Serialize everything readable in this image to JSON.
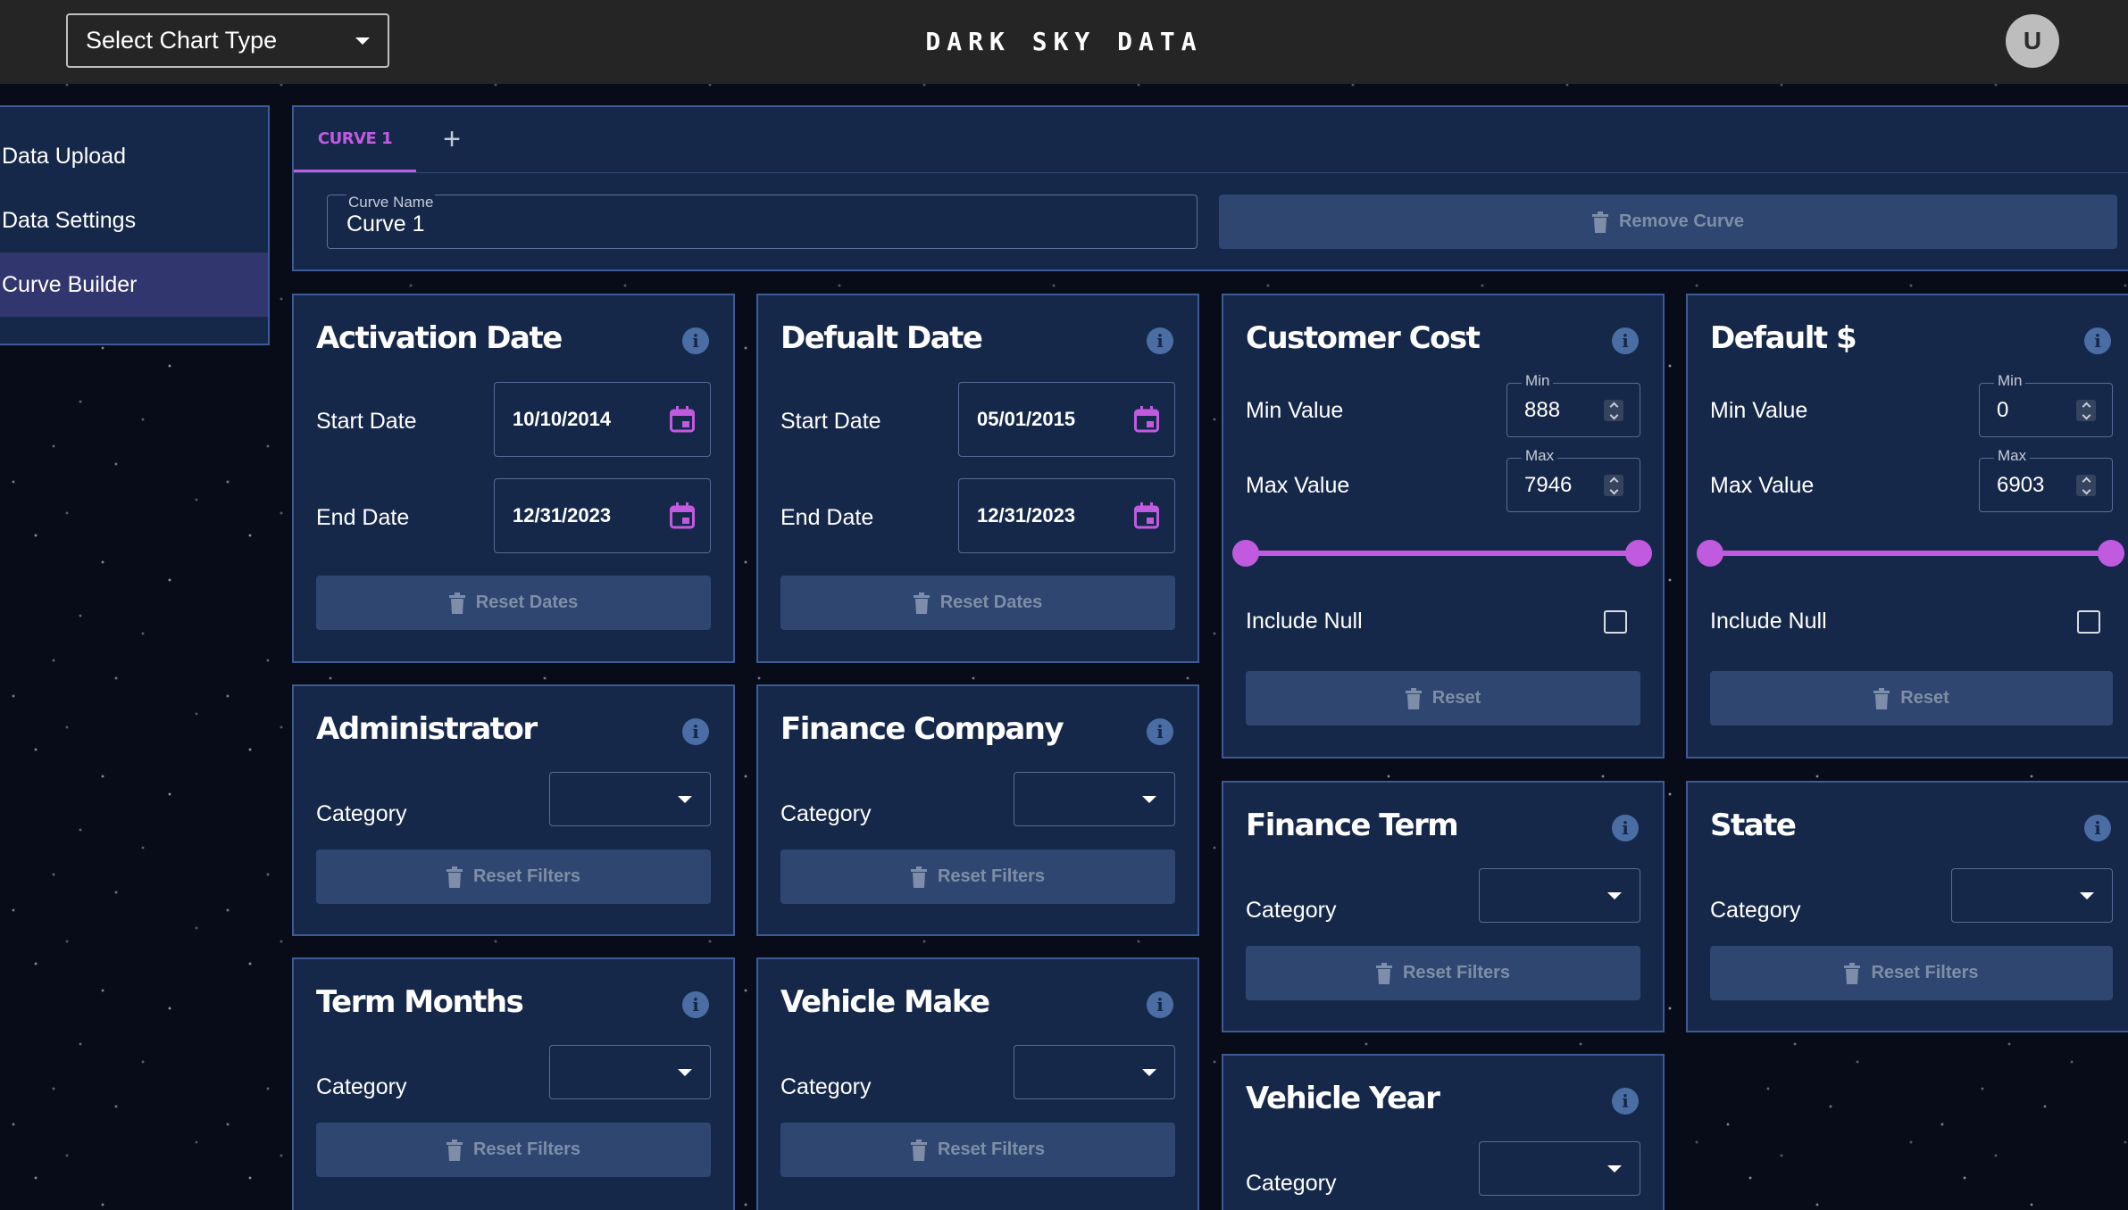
{
  "header": {
    "chart_type_select": "Select Chart Type",
    "brand": "DARK SKY DATA",
    "avatar_initial": "U"
  },
  "sidebar": {
    "items": [
      {
        "label": "Data Upload",
        "active": false
      },
      {
        "label": "Data Settings",
        "active": false
      },
      {
        "label": "Curve Builder",
        "active": true
      }
    ]
  },
  "curve": {
    "tabs": [
      {
        "label": "CURVE 1"
      }
    ],
    "add_tab": "+",
    "name_label": "Curve Name",
    "name_value": "Curve 1",
    "remove_label": "Remove Curve"
  },
  "colors": {
    "accent": "#c05be0",
    "panel": "#16284a",
    "panel_border": "#3c5b94",
    "topbar": "#252525",
    "button_disabled": "#2f4770"
  },
  "cards": {
    "activation_date": {
      "title": "Activation Date",
      "start_label": "Start Date",
      "start_value": "10/10/2014",
      "end_label": "End Date",
      "end_value": "12/31/2023",
      "reset": "Reset Dates"
    },
    "default_date": {
      "title": "Defualt Date",
      "start_label": "Start Date",
      "start_value": "05/01/2015",
      "end_label": "End Date",
      "end_value": "12/31/2023",
      "reset": "Reset Dates"
    },
    "customer_cost": {
      "title": "Customer Cost",
      "min_label": "Min Value",
      "min_field_label": "Min",
      "min_value": "888",
      "max_label": "Max Value",
      "max_field_label": "Max",
      "max_value": "7946",
      "range_position": [
        0,
        1
      ],
      "include_null_label": "Include Null",
      "include_null_checked": false,
      "reset": "Reset"
    },
    "default_dollars": {
      "title": "Default $",
      "min_label": "Min Value",
      "min_field_label": "Min",
      "min_value": "0",
      "max_label": "Max Value",
      "max_field_label": "Max",
      "max_value": "6903",
      "range_position": [
        0,
        1
      ],
      "include_null_label": "Include Null",
      "include_null_checked": false,
      "reset": "Reset"
    },
    "administrator": {
      "title": "Administrator",
      "category_label": "Category",
      "category_value": "",
      "reset": "Reset Filters"
    },
    "finance_company": {
      "title": "Finance Company",
      "category_label": "Category",
      "category_value": "",
      "reset": "Reset Filters"
    },
    "finance_term": {
      "title": "Finance Term",
      "category_label": "Category",
      "category_value": "",
      "reset": "Reset Filters"
    },
    "state": {
      "title": "State",
      "category_label": "Category",
      "category_value": "",
      "reset": "Reset Filters"
    },
    "term_months": {
      "title": "Term Months",
      "category_label": "Category",
      "category_value": "",
      "reset": "Reset Filters"
    },
    "vehicle_make": {
      "title": "Vehicle Make",
      "category_label": "Category",
      "category_value": "",
      "reset": "Reset Filters"
    },
    "vehicle_year": {
      "title": "Vehicle Year",
      "category_label": "Category",
      "category_value": ""
    }
  },
  "icons": {
    "info": "info-icon",
    "calendar": "calendar-icon",
    "trash": "trash-icon",
    "dropdown": "caret-down-icon"
  }
}
